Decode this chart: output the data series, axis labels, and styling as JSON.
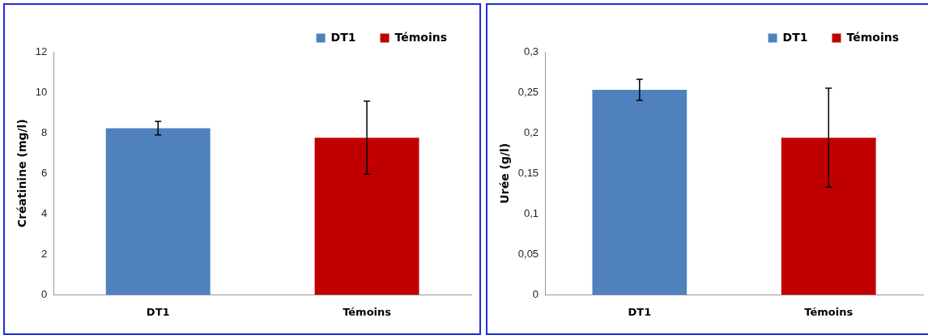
{
  "chart_data": [
    {
      "type": "bar",
      "ylabel": "Créatinine (mg/l)",
      "categories": [
        "DT1",
        "Témoins"
      ],
      "series": [
        {
          "name": "DT1",
          "color": "#4f81bd",
          "values": [
            8.23,
            null
          ],
          "errors": [
            0.33,
            null
          ]
        },
        {
          "name": "Témoins",
          "color": "#c00000",
          "values": [
            null,
            7.76
          ],
          "errors": [
            null,
            1.8
          ]
        }
      ],
      "ylim": [
        0,
        12
      ],
      "yticks": [
        0,
        2,
        4,
        6,
        8,
        10,
        12
      ],
      "legend": "top right"
    },
    {
      "type": "bar",
      "ylabel": "Urée (g/l)",
      "categories": [
        "DT1",
        "Témoins"
      ],
      "series": [
        {
          "name": "DT1",
          "color": "#4f81bd",
          "values": [
            0.253,
            null
          ],
          "errors": [
            0.013,
            null
          ]
        },
        {
          "name": "Témoins",
          "color": "#c00000",
          "values": [
            null,
            0.194
          ],
          "errors": [
            null,
            0.061
          ]
        }
      ],
      "ylim": [
        0,
        0.3
      ],
      "yticks": [
        0,
        {
          "value": 0.05,
          "label": "0,05"
        },
        {
          "value": 0.1,
          "label": "0,1"
        },
        {
          "value": 0.15,
          "label": "0,15"
        },
        {
          "value": 0.2,
          "label": "0,2"
        },
        {
          "value": 0.25,
          "label": "0,25"
        },
        {
          "value": 0.3,
          "label": "0,3"
        }
      ],
      "legend": "top right"
    }
  ]
}
